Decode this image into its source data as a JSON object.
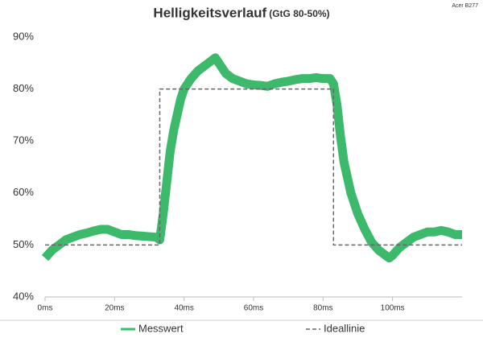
{
  "chart_data": {
    "type": "line",
    "title": "Helligkeitsverlauf",
    "subtitle": "(GtG 80-50%)",
    "annotation": "Acer B277",
    "xlim": [
      0,
      120
    ],
    "xticks": [
      {
        "value": 0,
        "label": "0ms"
      },
      {
        "value": 20,
        "label": "20ms"
      },
      {
        "value": 40,
        "label": "40ms"
      },
      {
        "value": 60,
        "label": "60ms"
      },
      {
        "value": 80,
        "label": "80ms"
      },
      {
        "value": 100,
        "label": "100ms"
      }
    ],
    "ylim": [
      40,
      90
    ],
    "yticks": [
      {
        "value": 40,
        "label": "40%"
      },
      {
        "value": 50,
        "label": "50%"
      },
      {
        "value": 60,
        "label": "60%"
      },
      {
        "value": 70,
        "label": "70%"
      },
      {
        "value": 80,
        "label": "80%"
      },
      {
        "value": 90,
        "label": "90%"
      }
    ],
    "grid": false,
    "legend": "bottom",
    "series": [
      {
        "name": "Messwert",
        "color": "#3cb96a",
        "style": "solid",
        "x": [
          0,
          2,
          4,
          6,
          8,
          10,
          12,
          14,
          16,
          18,
          20,
          22,
          24,
          26,
          28,
          30,
          32,
          33,
          34,
          35,
          36,
          37,
          38,
          39,
          40,
          42,
          44,
          46,
          48,
          49,
          50,
          52,
          54,
          56,
          58,
          60,
          62,
          64,
          66,
          68,
          70,
          72,
          74,
          76,
          78,
          80,
          82,
          83,
          84,
          85,
          86,
          88,
          90,
          92,
          94,
          96,
          98,
          99,
          100,
          102,
          104,
          106,
          108,
          110,
          112,
          114,
          116,
          118,
          120
        ],
        "values": [
          47.5,
          49,
          50,
          51,
          51.5,
          52,
          52.3,
          52.7,
          53,
          53,
          52.5,
          52,
          52,
          51.8,
          51.7,
          51.6,
          51.5,
          51,
          56,
          62,
          68,
          72,
          75,
          78,
          80,
          82,
          83.5,
          84.5,
          85.5,
          86,
          85,
          83,
          82,
          81.5,
          81,
          80.8,
          80.7,
          80.5,
          81,
          81.3,
          81.5,
          81.8,
          82,
          82,
          82.2,
          82,
          82,
          81,
          77,
          71,
          66,
          60,
          56,
          53,
          50.5,
          49,
          48,
          47.5,
          48,
          49.5,
          50.5,
          51.5,
          52,
          52.5,
          52.5,
          52.8,
          52.5,
          52,
          52
        ]
      },
      {
        "name": "Ideallinie",
        "color": "#666666",
        "style": "dashed",
        "x": [
          0,
          33,
          33,
          83,
          83,
          120
        ],
        "values": [
          50,
          50,
          80,
          80,
          50,
          50
        ]
      }
    ]
  }
}
